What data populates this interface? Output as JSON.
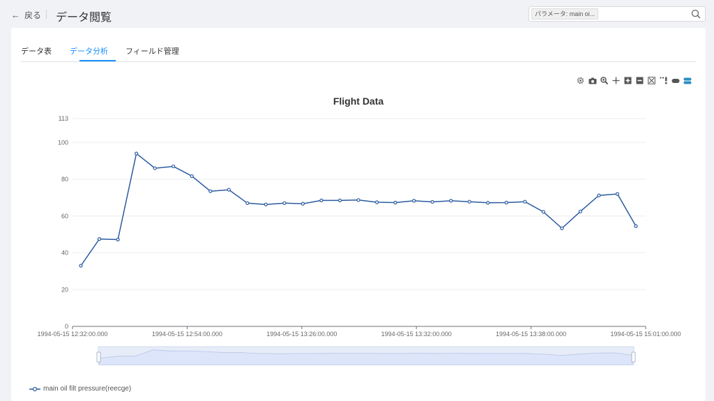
{
  "header": {
    "back_label": "戻る",
    "title": "データ閲覧",
    "param_tag": "パラメータ: main oi..."
  },
  "tabs": [
    {
      "label": "データ表",
      "active": false
    },
    {
      "label": "データ分析",
      "active": true
    },
    {
      "label": "フィールド管理",
      "active": false
    }
  ],
  "toolbox": [
    "settings-icon",
    "camera-icon",
    "zoom-icon",
    "move-icon",
    "plus-square-icon",
    "minus-square-icon",
    "fullscreen-icon",
    "pin-icon",
    "toggle-off-icon",
    "toggle-on-icon"
  ],
  "colors": {
    "accent": "#1890ff",
    "series": "#2a5aa0",
    "slider_fill": "#dce5fa"
  },
  "chart_data": {
    "type": "line",
    "title": "Flight Data",
    "xlabel": "",
    "ylabel": "",
    "ylim": [
      0,
      113
    ],
    "yticks": [
      "0",
      "20",
      "40",
      "60",
      "80",
      "100",
      "113"
    ],
    "xticks": [
      "1994-05-15 12:32:00.000",
      "1994-05-15 12:54:00.000",
      "1994-05-15 13:26:00.000",
      "1994-05-15 13:32:00.000",
      "1994-05-15 13:38:00.000",
      "1994-05-15 15:01:00.000"
    ],
    "grid": true,
    "legend": "bottom-left",
    "series": [
      {
        "name": "main oil filt pressure(reecge)",
        "values": [
          33,
          47.5,
          47.2,
          94,
          86,
          87,
          81.7,
          73.5,
          74.3,
          67,
          66.3,
          67,
          66.7,
          68.5,
          68.5,
          68.7,
          67.5,
          67.3,
          68.3,
          67.7,
          68.3,
          67.8,
          67.2,
          67.3,
          67.8,
          62.3,
          53.3,
          62.5,
          71.2,
          72,
          54.5
        ]
      }
    ]
  }
}
